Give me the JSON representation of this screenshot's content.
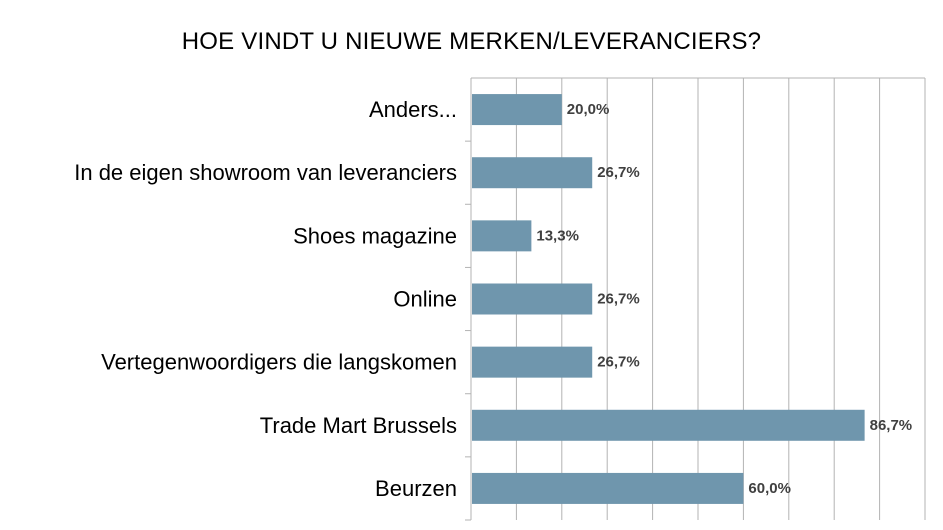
{
  "chart_data": {
    "type": "bar",
    "orientation": "horizontal",
    "title": "HOE VINDT U NIEUWE MERKEN/LEVERANCIERS?",
    "xlabel": "",
    "ylabel": "",
    "categories": [
      "Anders...",
      "In de eigen showroom van leveranciers",
      "Shoes magazine",
      "Online",
      "Vertegenwoordigers die langskomen",
      "Trade Mart Brussels",
      "Beurzen"
    ],
    "values": [
      20.0,
      26.7,
      13.3,
      26.7,
      26.7,
      86.7,
      60.0
    ],
    "value_labels": [
      "20,0%",
      "26,7%",
      "13,3%",
      "26,7%",
      "26,7%",
      "86,7%",
      "60,0%"
    ],
    "xlim": [
      0,
      100
    ],
    "grid": "vertical",
    "legend": "none",
    "bar_color": "#6f96ad",
    "grid_color": "#b3b3b3",
    "label_color": "#404040"
  }
}
